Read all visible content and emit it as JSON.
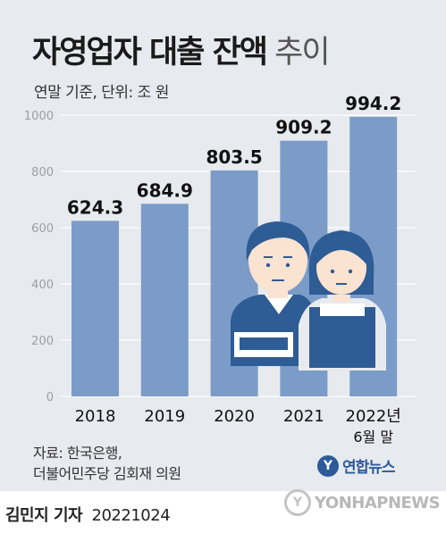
{
  "title": {
    "main": "자영업자 대출 잔액",
    "light": "추이"
  },
  "subtitle": "연말 기준, 단위: 조 원",
  "chart_data": {
    "type": "bar",
    "categories": [
      "2018",
      "2019",
      "2020",
      "2021",
      "2022년"
    ],
    "category_sublabels": [
      "",
      "",
      "",
      "",
      "6월 말"
    ],
    "values": [
      624.3,
      684.9,
      803.5,
      909.2,
      994.2
    ],
    "value_labels": [
      "624.3",
      "684.9",
      "803.5",
      "909.2",
      "994.2"
    ],
    "yticks": [
      0,
      200,
      400,
      600,
      800,
      1000
    ],
    "ylim": [
      0,
      1000
    ],
    "grid": true,
    "bar_color": "#7b9cc8"
  },
  "source": {
    "line1": "자료: 한국은행,",
    "line2": "더불어민주당 김회재 의원"
  },
  "agency_logo": {
    "text": "연합뉴스"
  },
  "reporter": {
    "name": "김민지 기자",
    "date": "20221024"
  },
  "watermark": {
    "text": "YONHAPNEWS"
  },
  "colors": {
    "background": "#e7eaee",
    "bar": "#7b9cc8",
    "person_navy": "#2e5c94",
    "person_skin": "#fbe3d1"
  },
  "illustration": {
    "icons": [
      "male-worker-icon",
      "female-worker-icon"
    ]
  }
}
